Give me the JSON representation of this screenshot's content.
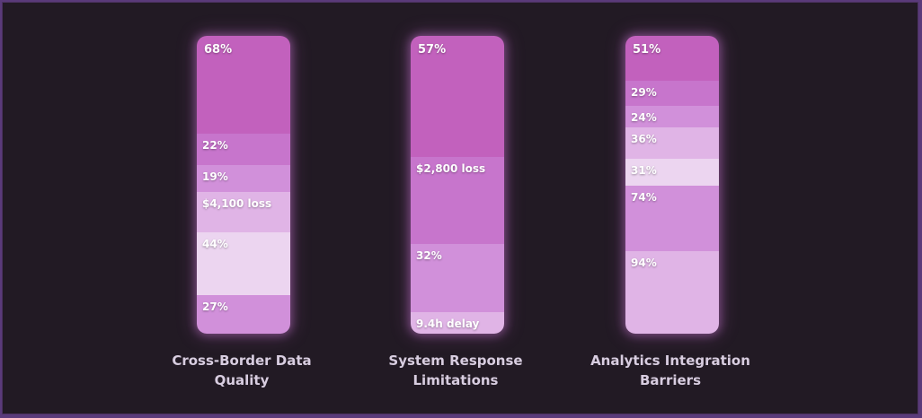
{
  "chart_data": {
    "type": "stacked-bar",
    "colors": [
      "#c261bd",
      "#c775cc",
      "#d190da",
      "#e0b4e6",
      "#ecd5f0"
    ],
    "columns": [
      {
        "title_lines": [
          "Cross-Border Data",
          "Quality"
        ],
        "segments": [
          {
            "label": "68%",
            "value": 68,
            "color": "#c261bd"
          },
          {
            "label": "22%",
            "value": 22,
            "color": "#c775cc"
          },
          {
            "label": "19%",
            "value": 19,
            "color": "#d190da"
          },
          {
            "label": "$4,100 loss",
            "value": 28,
            "color": "#e0b4e6"
          },
          {
            "label": "44%",
            "value": 44,
            "color": "#ecd5f0"
          },
          {
            "label": "27%",
            "value": 27,
            "color": "#d190da"
          }
        ]
      },
      {
        "title_lines": [
          "System Response",
          "Limitations"
        ],
        "segments": [
          {
            "label": "57%",
            "value": 57,
            "color": "#c261bd"
          },
          {
            "label": "$2,800 loss",
            "value": 41,
            "color": "#c775cc"
          },
          {
            "label": "32%",
            "value": 32,
            "color": "#d190da"
          },
          {
            "label": "9.4h delay",
            "value": 10,
            "color": "#e0b4e6"
          }
        ]
      },
      {
        "title_lines": [
          "Analytics Integration",
          "Barriers"
        ],
        "segments": [
          {
            "label": "51%",
            "value": 51,
            "color": "#c261bd"
          },
          {
            "label": "29%",
            "value": 29,
            "color": "#c775cc"
          },
          {
            "label": "24%",
            "value": 24,
            "color": "#d190da"
          },
          {
            "label": "36%",
            "value": 36,
            "color": "#e0b4e6"
          },
          {
            "label": "31%",
            "value": 31,
            "color": "#ecd5f0"
          },
          {
            "label": "74%",
            "value": 74,
            "color": "#d190da"
          },
          {
            "label": "94%",
            "value": 94,
            "color": "#e0b4e6"
          }
        ]
      }
    ]
  }
}
